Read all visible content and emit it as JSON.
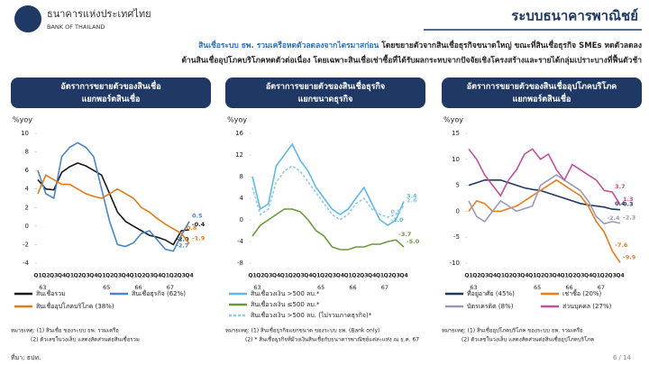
{
  "header": {
    "org_th": "ธนาคารแห่งประเทศไทย",
    "org_en": "BANK OF THAILAND",
    "title": "ระบบธนาคารพาณิชย์"
  },
  "summary": {
    "highlight": "สินเชื่อระบบ ธพ. รวมเครือหดตัวลดลงจากไตรมาสก่อน",
    "line1": " โดยขยายตัวจากสินเชื่อธุรกิจขนาดใหญ่ ขณะที่สินเชื่อธุรกิจ SMEs หดตัวลดลง",
    "line2": "ด้านสินเชื่ออุปโภคบริโภคหดตัวต่อเนื่อง โดยเฉพาะสินเชื่อเช่าซื้อที่ได้รับผลกระทบจากปัจจัยเชิงโครงสร้างและรายได้กลุ่มเปราะบางที่ฟื้นตัวช้า"
  },
  "chart_data": [
    {
      "type": "line",
      "title": [
        "อัตราการขยายตัวของสินเชื่อ",
        "แยกพอร์ตสินเชื่อ"
      ],
      "y_label": "%yoy",
      "categories": [
        "Q1",
        "Q2",
        "Q3",
        "Q4",
        "Q1",
        "Q2",
        "Q3",
        "Q4",
        "Q1",
        "Q2",
        "Q3",
        "Q4",
        "Q1",
        "Q2",
        "Q3",
        "Q4",
        "Q1",
        "Q2",
        "Q3",
        "Q4"
      ],
      "years": [
        "63",
        null,
        "65",
        "66",
        "67"
      ],
      "ylim": [
        -4,
        10
      ],
      "yticks": [
        -4,
        -2,
        0,
        2,
        4,
        6,
        8,
        10
      ],
      "series": [
        {
          "name": "สินเชื่อรวม",
          "color": "#1a1a1a",
          "values": [
            5.0,
            4.0,
            3.9,
            5.8,
            6.4,
            6.8,
            6.5,
            6.0,
            5.5,
            3.5,
            1.5,
            0.5,
            0,
            -0.5,
            -1.0,
            -1.2,
            -1.5,
            -2.0,
            -0.5,
            -0.4
          ],
          "value_labels": [
            null,
            null,
            null,
            null,
            null,
            null,
            null,
            null,
            null,
            null,
            null,
            null,
            null,
            null,
            null,
            null,
            null,
            "-2.0",
            null,
            "-0.4"
          ]
        },
        {
          "name": "สินเชื่อธุรกิจ (62%)",
          "color": "#4a86c8",
          "values": [
            6.0,
            3.5,
            3.0,
            7.5,
            8.5,
            9.0,
            8.5,
            7.5,
            4.0,
            0.5,
            -2.0,
            -2.2,
            -1.8,
            -0.8,
            -0.5,
            -1.5,
            -2.5,
            -2.7,
            -1.0,
            0.5
          ],
          "value_labels": [
            null,
            null,
            null,
            null,
            null,
            null,
            null,
            null,
            null,
            null,
            null,
            null,
            null,
            null,
            null,
            null,
            null,
            "-2.7",
            null,
            "0.5"
          ]
        },
        {
          "name": "สินเชื่ออุปโภคบริโภค (38%)",
          "color": "#e07b1a",
          "values": [
            3.5,
            5.5,
            5.0,
            4.5,
            4.5,
            4.0,
            3.5,
            3.2,
            3.0,
            3.5,
            4.0,
            3.5,
            3.0,
            2.0,
            1.5,
            0.8,
            0.2,
            -0.3,
            -0.8,
            -1.9
          ],
          "value_labels": [
            null,
            null,
            null,
            null,
            null,
            null,
            null,
            null,
            null,
            null,
            null,
            null,
            null,
            null,
            null,
            null,
            null,
            null,
            "-0.8",
            "-1.9"
          ]
        }
      ],
      "notes": [
        "หมายเหตุ: (1) สินเชื่อ ของระบบ ธพ. รวมเครือ",
        "(2) ตัวเลขในวงเล็บ แสดงสัดส่วนต่อสินเชื่อรวม"
      ]
    },
    {
      "type": "line",
      "title": [
        "อัตราการขยายตัวของสินเชื่อธุรกิจ",
        "แยกขนาดธุรกิจ"
      ],
      "y_label": "%yoy",
      "categories": [
        "Q1",
        "Q2",
        "Q3",
        "Q4",
        "Q1",
        "Q2",
        "Q3",
        "Q4",
        "Q1",
        "Q2",
        "Q3",
        "Q4",
        "Q1",
        "Q2",
        "Q3",
        "Q4",
        "Q1",
        "Q2",
        "Q3",
        "Q4"
      ],
      "years": [
        "63",
        null,
        "65",
        "66",
        "67"
      ],
      "ylim": [
        -8,
        16
      ],
      "yticks": [
        -8,
        -4,
        0,
        4,
        8,
        12,
        16
      ],
      "series": [
        {
          "name": "สินเชื่อวงเงิน >500 ลบ.*",
          "color": "#5fb8e8",
          "values": [
            8,
            2,
            3,
            10,
            12,
            14,
            11,
            9,
            6,
            4,
            2,
            1,
            2,
            4,
            6,
            3,
            0,
            -1.0,
            0,
            3.4
          ],
          "value_labels": [
            null,
            null,
            null,
            null,
            null,
            null,
            null,
            null,
            null,
            null,
            null,
            null,
            null,
            null,
            null,
            null,
            null,
            "-1.0",
            null,
            "3.4"
          ]
        },
        {
          "name": "สินเชื่อวงเงิน ≤500 ลบ.*",
          "color": "#6a9a3a",
          "values": [
            -3,
            -1,
            0,
            1,
            2,
            2,
            1.5,
            0,
            -2,
            -3,
            -5,
            -5.5,
            -5.5,
            -5,
            -5,
            -4.5,
            -4.5,
            -4,
            -3.7,
            -5.0
          ],
          "value_labels": [
            null,
            null,
            null,
            null,
            null,
            null,
            null,
            null,
            null,
            null,
            null,
            null,
            null,
            null,
            null,
            null,
            null,
            null,
            "-3.7",
            "-5.0"
          ]
        },
        {
          "name": "สินเชื่อวงเงิน >500 ลบ. (ไม่รวมภาคธุรกิจ)*",
          "color": "#8fcbe8",
          "dashed": true,
          "values": [
            6,
            1,
            2,
            7,
            9,
            10,
            9,
            7,
            5,
            3,
            1,
            0,
            1,
            3,
            4,
            2,
            1,
            0.5,
            1,
            2.6
          ],
          "value_labels": [
            null,
            null,
            null,
            null,
            null,
            null,
            null,
            null,
            null,
            null,
            null,
            null,
            null,
            null,
            null,
            null,
            null,
            "0.5",
            null,
            "2.6"
          ]
        }
      ],
      "notes": [
        "หมายเหตุ: (1) สินเชื่อธุรกิจแยกขนาด ของระบบ ธพ. (Bank only)",
        "(2) * สินเชื่อธุรกิจที่มีวงเงินสินเชื่อกับธนาคารพาณิชย์แต่ละแห่ง ณ ธ.ค. 67"
      ]
    },
    {
      "type": "line",
      "title": [
        "อัตราการขยายตัวของสินเชื่ออุปโภคบริโภค",
        "แยกพอร์ตสินเชื่อ"
      ],
      "y_label": "%yoy",
      "categories": [
        "Q1",
        "Q2",
        "Q3",
        "Q4",
        "Q1",
        "Q2",
        "Q3",
        "Q4",
        "Q1",
        "Q2",
        "Q3",
        "Q4",
        "Q1",
        "Q2",
        "Q3",
        "Q4",
        "Q1",
        "Q2",
        "Q3",
        "Q4"
      ],
      "years": [
        "63",
        null,
        "65",
        "66",
        "67"
      ],
      "ylim": [
        -10,
        15
      ],
      "yticks": [
        -10,
        -5,
        0,
        5,
        10,
        15
      ],
      "series": [
        {
          "name": "ที่อยู่อาศัย (45%)",
          "color": "#1f3864",
          "values": [
            5,
            5.5,
            6,
            6,
            6,
            5.5,
            5,
            4.5,
            4.2,
            4,
            3.5,
            3,
            2.5,
            2,
            1.5,
            1.2,
            1,
            0.8,
            0.4,
            0.3
          ],
          "value_labels": [
            null,
            null,
            null,
            null,
            null,
            null,
            null,
            null,
            null,
            null,
            null,
            null,
            null,
            null,
            null,
            null,
            null,
            null,
            "0.4",
            "0.3"
          ]
        },
        {
          "name": "เช่าซื้อ (20%)",
          "color": "#e87d1e",
          "values": [
            0,
            2,
            1.5,
            0,
            0,
            0.5,
            1,
            2,
            3,
            4,
            5,
            6,
            5,
            4,
            3,
            1,
            -2,
            -4,
            -7.6,
            -9.9
          ],
          "value_labels": [
            null,
            null,
            null,
            null,
            null,
            null,
            null,
            null,
            null,
            null,
            null,
            null,
            null,
            null,
            null,
            null,
            null,
            null,
            "-7.6",
            "-9.9"
          ]
        },
        {
          "name": "บัตรเครดิต (8%)",
          "color": "#9a9ab8",
          "values": [
            2,
            -1,
            -2,
            0,
            2,
            1,
            0,
            0.5,
            1,
            5,
            6,
            7,
            6,
            5,
            4,
            2,
            -1,
            -2.4,
            -2.0,
            -2.3
          ],
          "value_labels": [
            null,
            null,
            null,
            null,
            null,
            null,
            null,
            null,
            null,
            null,
            null,
            null,
            null,
            null,
            null,
            null,
            null,
            "-2.4",
            null,
            "-2.3"
          ]
        },
        {
          "name": "ส่วนบุคคล (27%)",
          "color": "#c0509a",
          "values": [
            12,
            10,
            7,
            5,
            3,
            6,
            8,
            11,
            12,
            10,
            11,
            8,
            6,
            9,
            8,
            7,
            6,
            4,
            3.7,
            1.3
          ],
          "value_labels": [
            null,
            null,
            null,
            null,
            null,
            null,
            null,
            null,
            null,
            null,
            null,
            null,
            null,
            null,
            null,
            null,
            null,
            null,
            "3.7",
            "1.3"
          ]
        }
      ],
      "notes": [
        "หมายเหตุ: (1) สินเชื่ออุปโภคบริโภค ของระบบ ธพ. รวมเครือ",
        "(2) ตัวเลขในวงเล็บ แสดงสัดส่วนต่อสินเชื่ออุปโภคบริโภค"
      ]
    }
  ],
  "footer": {
    "source": "ที่มา: ธปท.",
    "page": "6 / 14"
  }
}
